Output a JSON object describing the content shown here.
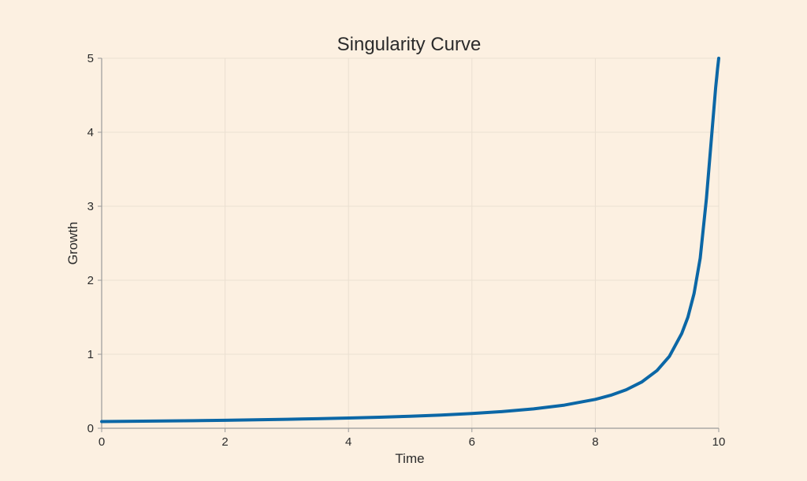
{
  "chart_data": {
    "type": "line",
    "title": "Singularity Curve",
    "xlabel": "Time",
    "ylabel": "Growth",
    "xlim": [
      0,
      10
    ],
    "ylim": [
      0,
      5
    ],
    "xticks": [
      0,
      2,
      4,
      6,
      8,
      10
    ],
    "yticks": [
      0,
      1,
      2,
      3,
      4,
      5
    ],
    "grid": true,
    "colors": {
      "background": "#fcf0e1",
      "line": "#0b67a6",
      "grid": "#eadfd1",
      "axis": "#9a9a9a",
      "text": "#2b2b2b"
    },
    "series": [
      {
        "x": [
          0,
          0.5,
          1,
          1.5,
          2,
          2.5,
          3,
          3.5,
          4,
          4.5,
          5,
          5.5,
          6,
          6.5,
          7,
          7.5,
          8,
          8.25,
          8.5,
          8.75,
          9,
          9.2,
          9.4,
          9.5,
          9.6,
          9.7,
          9.8,
          9.85,
          9.9,
          9.95,
          9.98,
          10
        ],
        "y": [
          0.09,
          0.094,
          0.098,
          0.103,
          0.108,
          0.114,
          0.121,
          0.129,
          0.138,
          0.149,
          0.162,
          0.178,
          0.199,
          0.226,
          0.262,
          0.313,
          0.39,
          0.446,
          0.52,
          0.624,
          0.78,
          0.971,
          1.28,
          1.5,
          1.82,
          2.3,
          3.1,
          3.6,
          4.1,
          4.6,
          4.85,
          5.0
        ]
      }
    ]
  }
}
